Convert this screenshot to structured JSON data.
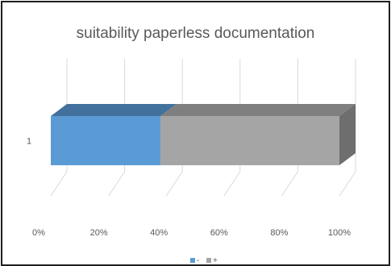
{
  "chart_data": {
    "type": "bar",
    "orientation": "horizontal",
    "stacked": "100%",
    "style": "3d",
    "title": "suitability paperless documentation",
    "categories": [
      "1"
    ],
    "series": [
      {
        "name": "-",
        "values": [
          0.38
        ],
        "color": "#5b9bd5"
      },
      {
        "name": "+",
        "values": [
          0.62
        ],
        "color": "#a5a5a5"
      }
    ],
    "x_ticks": [
      "0%",
      "20%",
      "40%",
      "60%",
      "80%",
      "100%"
    ],
    "xlim": [
      0,
      1
    ],
    "grid": true,
    "legend_position": "bottom"
  }
}
